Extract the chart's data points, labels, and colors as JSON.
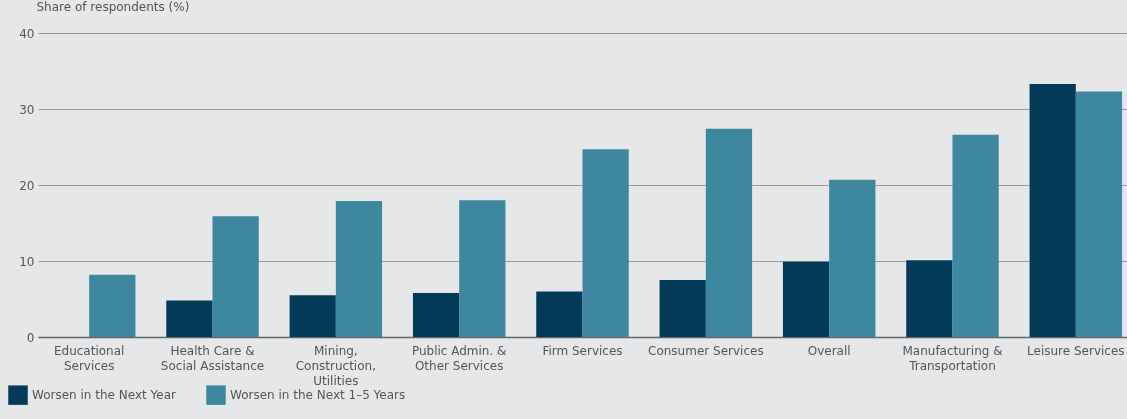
{
  "chart_data": {
    "type": "bar",
    "ylabel": "Share of respondents (%)",
    "categories": [
      "Educational Services",
      "Health Care & Social Assistance",
      "Mining, Construction, Utilities",
      "Public Admin. & Other Services",
      "Firm Services",
      "Consumer Services",
      "Overall",
      "Manufacturing & Transportation",
      "Leisure Services"
    ],
    "series": [
      {
        "name": "Worsen in the Next Year",
        "color": "#023b59",
        "values": [
          0,
          4.8,
          5.5,
          5.8,
          6.0,
          7.5,
          9.9,
          10.1,
          33.3
        ]
      },
      {
        "name": "Worsen in the Next 1–5 Years",
        "color": "#3d88a0",
        "values": [
          8.2,
          15.9,
          17.9,
          18.0,
          24.7,
          27.4,
          20.7,
          26.6,
          32.3
        ]
      }
    ],
    "ylim": [
      0,
      40
    ],
    "yticks": [
      0,
      10,
      20,
      30,
      40
    ],
    "grid": "y",
    "legend": "bottom left"
  }
}
